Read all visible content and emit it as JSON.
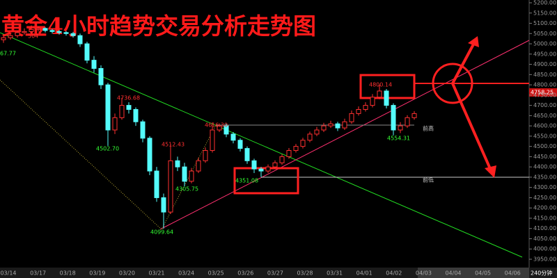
{
  "chart_data": {
    "type": "candlestick",
    "title": "黄金4小时趋势交易分析走势图",
    "open": [
      5020,
      5030,
      5040,
      5055,
      5060,
      5070,
      5075,
      5065,
      5060,
      5055,
      5050,
      5040,
      5000,
      4920,
      4880,
      4800,
      4580,
      4640,
      4700,
      4680,
      4620,
      4540,
      4380,
      4250,
      4180,
      4430,
      4400,
      4330,
      4380,
      4430,
      4480,
      4580,
      4600,
      4560,
      4530,
      4490,
      4430,
      4390,
      4380,
      4400,
      4420,
      4450,
      4480,
      4500,
      4530,
      4560,
      4580,
      4600,
      4610,
      4590,
      4620,
      4660,
      4680,
      4700,
      4740,
      4770,
      4700,
      4580,
      4600,
      4640
    ],
    "high": [
      5045,
      5050,
      5065,
      5075,
      5090,
      5085,
      5080,
      5072,
      5068,
      5062,
      5058,
      5050,
      5010,
      4940,
      4895,
      4810,
      4660,
      4736.68,
      4715,
      4690,
      4630,
      4550,
      4400,
      4270,
      4512.43,
      4450,
      4420,
      4395,
      4445,
      4495,
      4616.3,
      4612,
      4610,
      4570,
      4540,
      4500,
      4440,
      4400,
      4412,
      4432,
      4462,
      4492,
      4512,
      4542,
      4572,
      4595,
      4615,
      4625,
      4620,
      4635,
      4675,
      4695,
      4715,
      4755,
      4800.14,
      4780,
      4710,
      4618,
      4652,
      4672
    ],
    "low": [
      5005,
      5020,
      5030,
      5045,
      5050,
      5060,
      5055,
      5050,
      5045,
      5040,
      5030,
      4985,
      4905,
      4860,
      4780,
      4502.7,
      4560,
      4630,
      4660,
      4600,
      4520,
      4360,
      4230,
      4099.64,
      4170,
      4380,
      4305.75,
      4320,
      4370,
      4420,
      4470,
      4570,
      4545,
      4515,
      4475,
      4415,
      4370,
      4351.08,
      4370,
      4392,
      4410,
      4440,
      4470,
      4490,
      4520,
      4550,
      4570,
      4590,
      4575,
      4580,
      4610,
      4650,
      4670,
      4690,
      4730,
      4685,
      4554.31,
      4565,
      4590,
      4630
    ],
    "close": [
      5030,
      5040,
      5055,
      5060,
      5070,
      5075,
      5065,
      5060,
      5055,
      5050,
      5040,
      5000,
      4920,
      4880,
      4800,
      4580,
      4640,
      4700,
      4680,
      4620,
      4540,
      4380,
      4250,
      4180,
      4430,
      4400,
      4330,
      4380,
      4430,
      4480,
      4580,
      4600,
      4560,
      4530,
      4490,
      4430,
      4390,
      4380,
      4400,
      4420,
      4450,
      4480,
      4500,
      4530,
      4560,
      4580,
      4600,
      4610,
      4590,
      4620,
      4660,
      4680,
      4700,
      4740,
      4770,
      4700,
      4580,
      4600,
      4640,
      4660
    ],
    "up_color": "#ff3030",
    "down_color": "#54fcfc",
    "ylim": [
      3950,
      5200
    ],
    "yticks": [
      {
        "value": 3950,
        "label": "3950.00"
      },
      {
        "value": 4000,
        "label": "4000.00"
      },
      {
        "value": 4050,
        "label": "4050.00"
      },
      {
        "value": 4100,
        "label": "4100.00"
      },
      {
        "value": 4150,
        "label": "4150.00"
      },
      {
        "value": 4200,
        "label": "4200.00"
      },
      {
        "value": 4250,
        "label": "4250.00"
      },
      {
        "value": 4300,
        "label": "4300.00"
      },
      {
        "value": 4350,
        "label": "4350.00"
      },
      {
        "value": 4400,
        "label": "4400.00"
      },
      {
        "value": 4450,
        "label": "4450.00"
      },
      {
        "value": 4500,
        "label": "4500.00"
      },
      {
        "value": 4550,
        "label": "4550.00"
      },
      {
        "value": 4600,
        "label": "4600.00"
      },
      {
        "value": 4650,
        "label": "4650.00"
      },
      {
        "value": 4700,
        "label": "4700.00"
      },
      {
        "value": 4750,
        "label": "4750.00"
      },
      {
        "value": 4800,
        "label": "4800.00"
      },
      {
        "value": 4850,
        "label": "4850.00"
      },
      {
        "value": 4900,
        "label": "4900.00"
      },
      {
        "value": 4950,
        "label": "4950.00"
      },
      {
        "value": 5000,
        "label": "5000.00"
      },
      {
        "value": 5050,
        "label": "5050.00"
      },
      {
        "value": 5100,
        "label": "5100.00"
      },
      {
        "value": 5150,
        "label": "5150.00"
      },
      {
        "value": 5200,
        "label": "5200.00"
      }
    ],
    "x_labels": [
      "03/14",
      "03/17",
      "03/18",
      "03/19",
      "03/20",
      "03/21",
      "03/24",
      "03/25",
      "03/26",
      "03/27",
      "03/28",
      "03/31",
      "04/01",
      "04/02",
      "04/03",
      "04/04",
      "04/05",
      "04/06"
    ],
    "annotations": [
      "67.77",
      "504",
      "4736.68",
      "4502.70",
      "4512.43",
      "4305.75",
      "4099.64",
      "4616.30",
      "4351.08",
      "4800.14",
      "4554.31",
      "前高",
      "前低",
      "4758.25",
      "240分钟"
    ]
  }
}
